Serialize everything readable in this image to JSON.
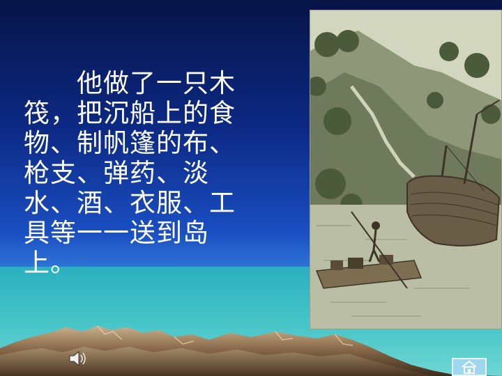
{
  "slide": {
    "body_lines": [
      "　　他做了一只木",
      "筏，把沉船上的食",
      "物、制帆篷的布、",
      "枪支、弹药、淡",
      "水、酒、衣服、工",
      "具等一一送到岛",
      "上。"
    ]
  },
  "icons": {
    "sound": "speaker-icon",
    "home": "home-icon"
  },
  "colors": {
    "sky_top": "#071446",
    "sky_mid": "#1a4fc2",
    "sea": "#41c3c7",
    "mountain": "#8a6a4a",
    "text": "#ffffff"
  }
}
